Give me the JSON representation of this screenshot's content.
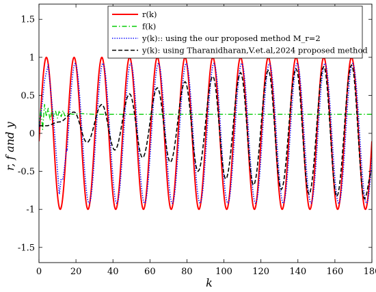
{
  "chart_data": {
    "type": "line",
    "title": "",
    "xlabel": "k",
    "ylabel": "r, f and y",
    "xlim": [
      0,
      180
    ],
    "ylim": [
      -1.7,
      1.7
    ],
    "xticks": [
      "0",
      "20",
      "40",
      "60",
      "80",
      "100",
      "120",
      "140",
      "160",
      "180"
    ],
    "yticks": [
      "-1.5",
      "-1",
      "-0.5",
      "0",
      "0.5",
      "1",
      "1.5"
    ],
    "grid": false,
    "legend_position": "top-right",
    "series": [
      {
        "name": "r(k)",
        "color": "#ff0000",
        "style": "solid",
        "model": "sine",
        "amplitude": 1.0,
        "period": 15,
        "peaks_x": [
          4,
          19,
          34,
          49,
          64,
          79,
          94,
          109,
          124,
          139,
          154,
          169
        ],
        "points": [
          [
            0,
            0.0
          ],
          [
            4,
            1.0
          ],
          [
            8,
            0.0
          ],
          [
            11.5,
            -1.0
          ],
          [
            15,
            0.0
          ],
          [
            19,
            1.0
          ],
          [
            23,
            0.0
          ],
          [
            26.5,
            -1.0
          ],
          [
            30,
            0.0
          ],
          [
            34,
            1.0
          ],
          [
            38,
            0.0
          ],
          [
            41.5,
            -1.0
          ],
          [
            45,
            0.0
          ],
          [
            49,
            1.0
          ],
          [
            53,
            0.0
          ],
          [
            56.5,
            -1.0
          ],
          [
            60,
            0.0
          ],
          [
            64,
            1.0
          ],
          [
            68,
            0.0
          ],
          [
            71.5,
            -1.0
          ],
          [
            75,
            0.0
          ],
          [
            79,
            1.0
          ],
          [
            83,
            0.0
          ],
          [
            86.5,
            -1.0
          ],
          [
            90,
            0.0
          ],
          [
            94,
            1.0
          ],
          [
            98,
            0.0
          ],
          [
            101.5,
            -1.0
          ],
          [
            105,
            0.0
          ],
          [
            109,
            1.0
          ],
          [
            113,
            0.0
          ],
          [
            116.5,
            -1.0
          ],
          [
            120,
            0.0
          ],
          [
            124,
            1.0
          ],
          [
            128,
            0.0
          ],
          [
            131.5,
            -1.0
          ],
          [
            135,
            0.0
          ],
          [
            139,
            1.0
          ],
          [
            143,
            0.0
          ],
          [
            146.5,
            -1.0
          ],
          [
            150,
            0.0
          ],
          [
            154,
            1.0
          ],
          [
            158,
            0.0
          ],
          [
            161.5,
            -1.0
          ],
          [
            165,
            0.0
          ],
          [
            169,
            1.0
          ],
          [
            173,
            0.0
          ],
          [
            176.5,
            -1.0
          ],
          [
            180,
            0.0
          ]
        ]
      },
      {
        "name": "f(k)",
        "color": "#00cc00",
        "style": "dashdot",
        "points": [
          [
            0,
            0.1
          ],
          [
            1,
            0.32
          ],
          [
            2,
            0.05
          ],
          [
            3,
            0.38
          ],
          [
            4,
            0.22
          ],
          [
            5,
            0.33
          ],
          [
            6,
            0.17
          ],
          [
            7,
            0.31
          ],
          [
            8,
            0.22
          ],
          [
            9,
            0.29
          ],
          [
            10,
            0.2
          ],
          [
            11,
            0.3
          ],
          [
            12,
            0.22
          ],
          [
            13,
            0.3
          ],
          [
            14,
            0.23
          ],
          [
            16,
            0.27
          ],
          [
            18,
            0.25
          ],
          [
            22,
            0.26
          ],
          [
            30,
            0.25
          ],
          [
            60,
            0.25
          ],
          [
            120,
            0.25
          ],
          [
            180,
            0.25
          ]
        ]
      },
      {
        "name": "y(k):: using the our proposed method M_r=2",
        "color": "#0000ff",
        "style": "dotted",
        "model": "sine-lagged",
        "amplitude": 0.92,
        "lag": 0.6,
        "points": [
          [
            0,
            0.05
          ],
          [
            2,
            0.45
          ],
          [
            3,
            0.7
          ],
          [
            5,
            0.9
          ],
          [
            8,
            0.15
          ],
          [
            11,
            -0.8
          ],
          [
            12,
            -0.6
          ],
          [
            13,
            -0.6
          ],
          [
            15,
            -0.2
          ],
          [
            19.6,
            0.92
          ],
          [
            27.1,
            -0.92
          ],
          [
            34.6,
            0.92
          ],
          [
            42.1,
            -0.92
          ],
          [
            49.6,
            0.92
          ],
          [
            57.1,
            -0.92
          ],
          [
            64.6,
            0.92
          ],
          [
            72.1,
            -0.92
          ],
          [
            79.6,
            0.92
          ],
          [
            87.1,
            -0.92
          ],
          [
            94.6,
            0.92
          ],
          [
            102.1,
            -0.92
          ],
          [
            109.6,
            0.92
          ],
          [
            117.1,
            -0.92
          ],
          [
            124.6,
            0.92
          ],
          [
            132.1,
            -0.92
          ],
          [
            139.6,
            0.92
          ],
          [
            147.1,
            -0.92
          ],
          [
            154.6,
            0.92
          ],
          [
            162.1,
            -0.92
          ],
          [
            169.6,
            0.92
          ],
          [
            177.1,
            -0.92
          ],
          [
            180,
            -0.3
          ]
        ]
      },
      {
        "name": "y(k): using Tharanidharan,V.et.al,2024 proposed method",
        "color": "#000000",
        "style": "dashed",
        "peaks": [
          [
            0,
            0.1
          ],
          [
            4,
            0.1
          ],
          [
            11,
            0.15
          ],
          [
            19,
            0.28
          ],
          [
            26,
            -0.12
          ],
          [
            34,
            0.38
          ],
          [
            41,
            -0.22
          ],
          [
            49,
            0.52
          ],
          [
            56,
            -0.32
          ],
          [
            64,
            0.6
          ],
          [
            71,
            -0.38
          ],
          [
            79,
            0.68
          ],
          [
            86,
            -0.5
          ],
          [
            94,
            0.75
          ],
          [
            101,
            -0.6
          ],
          [
            109,
            0.8
          ],
          [
            116,
            -0.68
          ],
          [
            124,
            0.83
          ],
          [
            131,
            -0.74
          ],
          [
            139,
            0.85
          ],
          [
            146,
            -0.8
          ],
          [
            154,
            0.88
          ],
          [
            161,
            -0.83
          ],
          [
            169,
            0.9
          ],
          [
            176,
            -0.86
          ],
          [
            180,
            -0.5
          ]
        ]
      }
    ]
  }
}
